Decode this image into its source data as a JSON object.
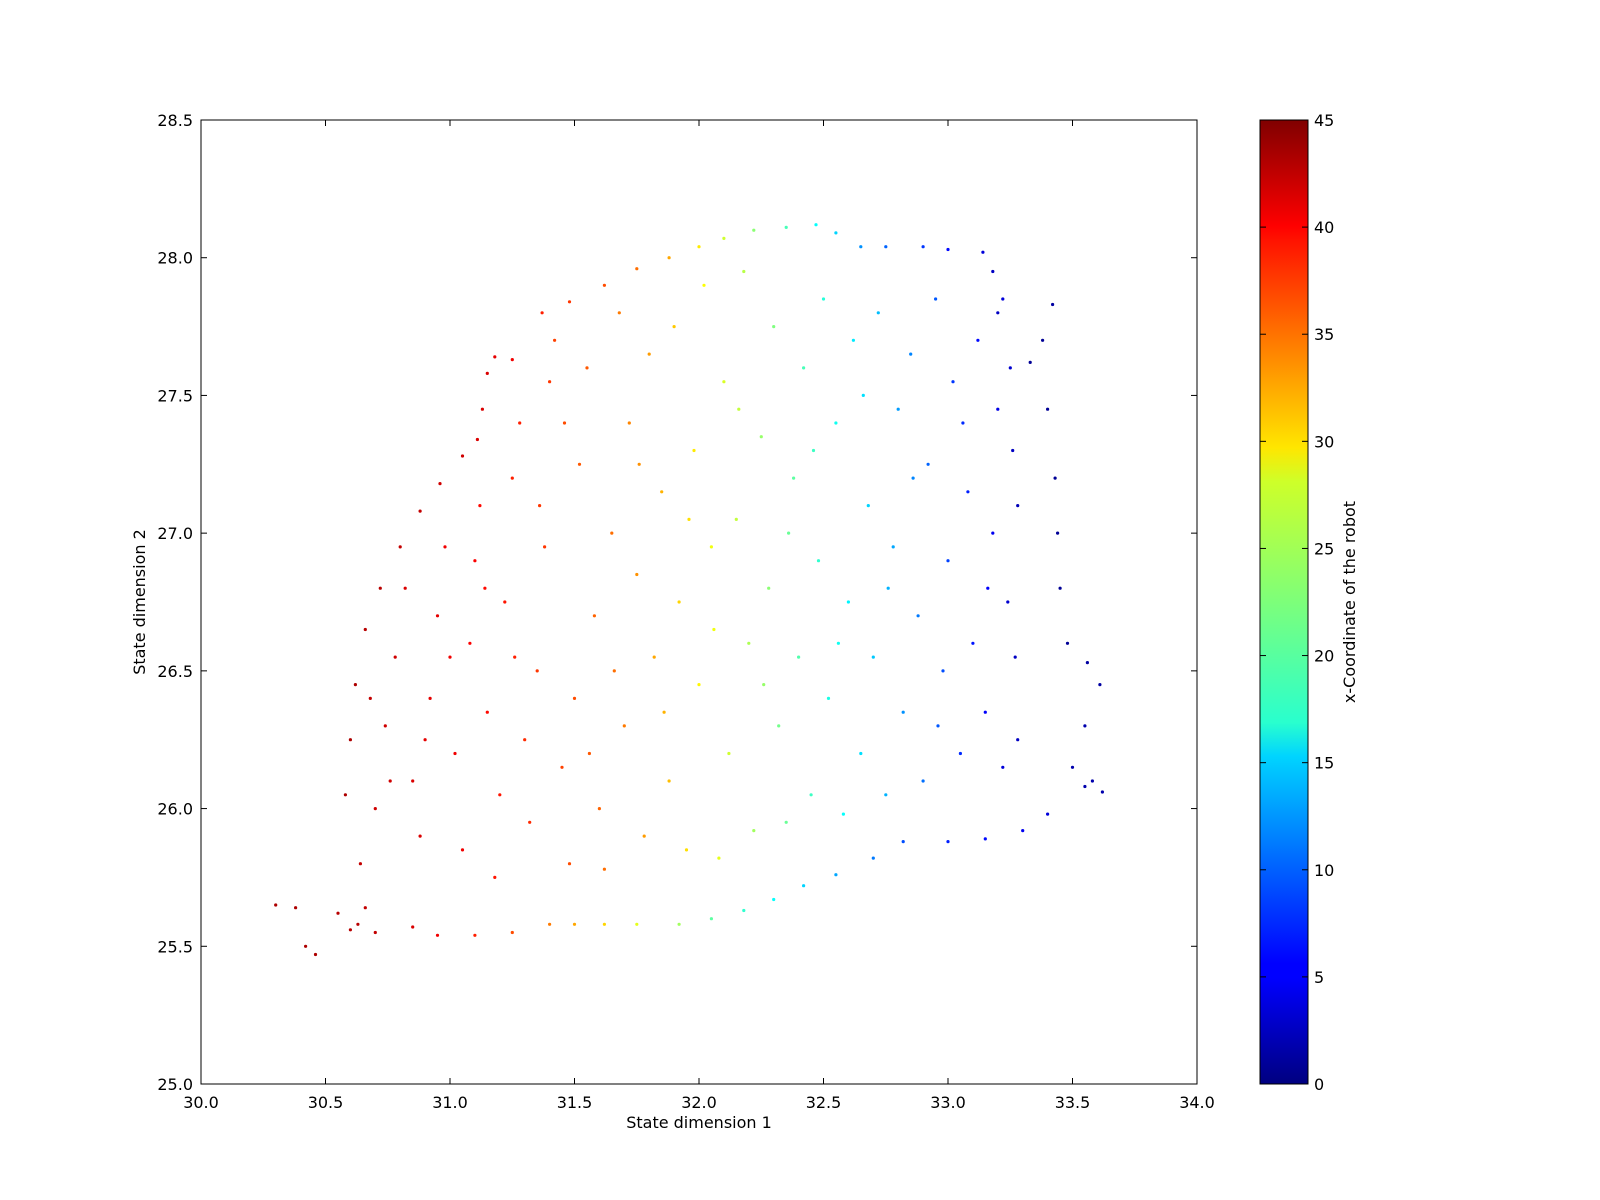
{
  "chart_data": {
    "type": "scatter",
    "title": "",
    "xlabel": "State dimension 1",
    "ylabel": "State dimension 2",
    "xlim": [
      30.0,
      34.0
    ],
    "ylim": [
      25.0,
      28.5
    ],
    "xticks": [
      "30.0",
      "30.5",
      "31.0",
      "31.5",
      "32.0",
      "32.5",
      "33.0",
      "33.5",
      "34.0"
    ],
    "yticks": [
      "25.0",
      "25.5",
      "26.0",
      "26.5",
      "27.0",
      "27.5",
      "28.0",
      "28.5"
    ],
    "grid": false,
    "colorbar": {
      "label": "x-Coordinate of the robot",
      "range": [
        0,
        45
      ],
      "ticks": [
        "0",
        "5",
        "10",
        "15",
        "20",
        "25",
        "30",
        "35",
        "40",
        "45"
      ],
      "colormap": "jet"
    },
    "marker_size": "tiny",
    "series": [
      {
        "points": [
          [
            30.58,
            26.05,
            43
          ],
          [
            30.6,
            26.25,
            43
          ],
          [
            30.62,
            26.45,
            43
          ],
          [
            30.66,
            26.65,
            42.5
          ],
          [
            30.72,
            26.8,
            42.5
          ],
          [
            30.8,
            26.95,
            42
          ],
          [
            30.88,
            27.08,
            42
          ],
          [
            30.96,
            27.18,
            41.5
          ],
          [
            31.05,
            27.28,
            41.5
          ],
          [
            31.11,
            27.34,
            41
          ],
          [
            31.13,
            27.45,
            41
          ],
          [
            31.15,
            27.58,
            41
          ],
          [
            31.18,
            27.64,
            40.5
          ],
          [
            31.25,
            27.63,
            40
          ],
          [
            31.37,
            27.8,
            38
          ],
          [
            31.48,
            27.84,
            37
          ],
          [
            31.62,
            27.9,
            36
          ],
          [
            31.75,
            27.96,
            34.5
          ],
          [
            31.88,
            28.0,
            32
          ],
          [
            32.0,
            28.04,
            29
          ],
          [
            32.1,
            28.07,
            26
          ],
          [
            32.22,
            28.1,
            23
          ],
          [
            32.35,
            28.11,
            20
          ],
          [
            32.47,
            28.12,
            17
          ],
          [
            32.55,
            28.09,
            15
          ],
          [
            32.65,
            28.04,
            12
          ],
          [
            32.75,
            28.04,
            10
          ],
          [
            32.9,
            28.04,
            8
          ],
          [
            33.0,
            28.03,
            6
          ],
          [
            33.14,
            28.02,
            4
          ],
          [
            33.18,
            27.95,
            3
          ],
          [
            33.2,
            27.8,
            3
          ],
          [
            33.42,
            27.83,
            1.5
          ],
          [
            33.38,
            27.7,
            1
          ],
          [
            33.33,
            27.62,
            1
          ],
          [
            33.4,
            27.45,
            1
          ],
          [
            33.43,
            27.2,
            1
          ],
          [
            33.44,
            27.0,
            1
          ],
          [
            33.45,
            26.8,
            1
          ],
          [
            33.48,
            26.6,
            1
          ],
          [
            33.56,
            26.53,
            1.5
          ],
          [
            33.61,
            26.45,
            1.5
          ],
          [
            33.55,
            26.3,
            2
          ],
          [
            33.5,
            26.15,
            2
          ],
          [
            33.55,
            26.08,
            2
          ],
          [
            33.62,
            26.06,
            2
          ],
          [
            33.58,
            26.1,
            2
          ],
          [
            33.4,
            25.98,
            4
          ],
          [
            33.3,
            25.92,
            5
          ],
          [
            33.15,
            25.89,
            6
          ],
          [
            33.0,
            25.88,
            7
          ],
          [
            32.82,
            25.88,
            9
          ],
          [
            32.7,
            25.82,
            11
          ],
          [
            32.55,
            25.76,
            13
          ],
          [
            32.42,
            25.72,
            15
          ],
          [
            32.3,
            25.67,
            17
          ],
          [
            32.18,
            25.63,
            19
          ],
          [
            32.05,
            25.6,
            21
          ],
          [
            31.92,
            25.58,
            24
          ],
          [
            31.75,
            25.58,
            27
          ],
          [
            31.62,
            25.58,
            30
          ],
          [
            31.5,
            25.58,
            32
          ],
          [
            31.4,
            25.58,
            34
          ],
          [
            31.25,
            25.55,
            36
          ],
          [
            31.1,
            25.54,
            38
          ],
          [
            30.95,
            25.54,
            40
          ],
          [
            30.85,
            25.57,
            41
          ],
          [
            30.3,
            25.65,
            43
          ],
          [
            30.38,
            25.64,
            43
          ],
          [
            30.42,
            25.5,
            43
          ],
          [
            30.46,
            25.47,
            43
          ],
          [
            30.55,
            25.62,
            42.5
          ],
          [
            30.6,
            25.56,
            42.5
          ],
          [
            30.63,
            25.58,
            42.5
          ],
          [
            30.66,
            25.64,
            42
          ],
          [
            30.7,
            25.55,
            42
          ],
          [
            30.64,
            25.8,
            42
          ],
          [
            30.7,
            26.0,
            41.5
          ],
          [
            30.74,
            26.3,
            41.5
          ],
          [
            30.78,
            26.55,
            41.5
          ],
          [
            30.82,
            26.8,
            41
          ],
          [
            30.85,
            26.1,
            41
          ],
          [
            30.88,
            25.9,
            41
          ],
          [
            30.92,
            26.4,
            40.5
          ],
          [
            30.95,
            26.7,
            40.5
          ],
          [
            30.98,
            26.95,
            40
          ],
          [
            31.02,
            26.2,
            40
          ],
          [
            31.05,
            25.85,
            40
          ],
          [
            31.08,
            26.6,
            39.5
          ],
          [
            31.1,
            26.9,
            39.5
          ],
          [
            31.12,
            27.1,
            39
          ],
          [
            31.15,
            26.35,
            39
          ],
          [
            31.18,
            25.75,
            38.5
          ],
          [
            31.2,
            26.05,
            38.5
          ],
          [
            31.22,
            26.75,
            38.5
          ],
          [
            31.25,
            27.2,
            38
          ],
          [
            31.28,
            27.4,
            38
          ],
          [
            31.3,
            26.25,
            37.5
          ],
          [
            31.32,
            25.95,
            37.5
          ],
          [
            31.35,
            26.5,
            37
          ],
          [
            31.38,
            26.95,
            37
          ],
          [
            31.4,
            27.55,
            37
          ],
          [
            31.42,
            27.7,
            36.5
          ],
          [
            31.45,
            26.15,
            36.5
          ],
          [
            31.48,
            25.8,
            36
          ],
          [
            31.5,
            26.4,
            36
          ],
          [
            31.52,
            27.25,
            35.5
          ],
          [
            31.55,
            27.6,
            35.5
          ],
          [
            31.58,
            26.7,
            35
          ],
          [
            31.6,
            26.0,
            35
          ],
          [
            31.62,
            25.78,
            34.5
          ],
          [
            31.65,
            27.0,
            34.5
          ],
          [
            31.68,
            27.8,
            34
          ],
          [
            31.7,
            26.3,
            34
          ],
          [
            31.72,
            27.4,
            33.5
          ],
          [
            31.75,
            26.85,
            33
          ],
          [
            31.78,
            25.9,
            32.5
          ],
          [
            31.8,
            27.65,
            32.5
          ],
          [
            31.82,
            26.55,
            32
          ],
          [
            31.85,
            27.15,
            31.5
          ],
          [
            31.88,
            26.1,
            31
          ],
          [
            31.9,
            27.75,
            30.5
          ],
          [
            31.92,
            26.75,
            30
          ],
          [
            31.95,
            25.85,
            29.5
          ],
          [
            31.98,
            27.3,
            29
          ],
          [
            32.0,
            26.45,
            28.5
          ],
          [
            32.02,
            27.9,
            28
          ],
          [
            32.05,
            26.95,
            27.5
          ],
          [
            32.08,
            25.82,
            27
          ],
          [
            32.1,
            27.55,
            26.5
          ],
          [
            32.12,
            26.2,
            26
          ],
          [
            32.15,
            27.05,
            25.5
          ],
          [
            32.18,
            27.95,
            25
          ],
          [
            32.2,
            26.6,
            24.5
          ],
          [
            32.22,
            25.92,
            24
          ],
          [
            32.25,
            27.35,
            23.5
          ],
          [
            32.28,
            26.8,
            23
          ],
          [
            32.3,
            27.75,
            22.5
          ],
          [
            32.32,
            26.3,
            22
          ],
          [
            32.35,
            25.95,
            21.5
          ],
          [
            32.38,
            27.2,
            21
          ],
          [
            32.4,
            26.55,
            20.5
          ],
          [
            32.42,
            27.6,
            20
          ],
          [
            32.45,
            26.05,
            19.5
          ],
          [
            32.48,
            26.9,
            19
          ],
          [
            32.5,
            27.85,
            18.5
          ],
          [
            32.52,
            26.4,
            18
          ],
          [
            32.55,
            27.4,
            17.5
          ],
          [
            32.58,
            25.98,
            17
          ],
          [
            32.6,
            26.75,
            16.5
          ],
          [
            32.62,
            27.7,
            16
          ],
          [
            32.65,
            26.2,
            15.5
          ],
          [
            32.68,
            27.1,
            15
          ],
          [
            32.7,
            26.55,
            14.5
          ],
          [
            32.72,
            27.8,
            14
          ],
          [
            32.75,
            26.05,
            13.5
          ],
          [
            32.78,
            26.95,
            13
          ],
          [
            32.8,
            27.45,
            12.5
          ],
          [
            32.82,
            26.35,
            12
          ],
          [
            32.85,
            27.65,
            11.5
          ],
          [
            32.88,
            26.7,
            11
          ],
          [
            32.9,
            26.1,
            10.5
          ],
          [
            32.92,
            27.25,
            10
          ],
          [
            32.95,
            27.85,
            9.5
          ],
          [
            32.98,
            26.5,
            9
          ],
          [
            33.0,
            26.9,
            8.5
          ],
          [
            33.02,
            27.55,
            8
          ],
          [
            33.05,
            26.2,
            7.5
          ],
          [
            33.08,
            27.15,
            7
          ],
          [
            33.1,
            26.6,
            6.5
          ],
          [
            33.12,
            27.7,
            6
          ],
          [
            33.15,
            26.35,
            5.5
          ],
          [
            33.18,
            27.0,
            5
          ],
          [
            33.2,
            27.45,
            4.5
          ],
          [
            33.22,
            26.15,
            4
          ],
          [
            33.24,
            26.75,
            3.5
          ],
          [
            33.26,
            27.3,
            3
          ],
          [
            33.27,
            26.55,
            3
          ],
          [
            33.28,
            27.1,
            2.5
          ],
          [
            33.28,
            26.25,
            3
          ],
          [
            33.25,
            27.6,
            3.5
          ],
          [
            33.22,
            27.85,
            4
          ],
          [
            30.68,
            26.4,
            42
          ],
          [
            30.76,
            26.1,
            41.5
          ],
          [
            30.9,
            26.25,
            40.5
          ],
          [
            31.0,
            26.55,
            40
          ],
          [
            31.14,
            26.8,
            39
          ],
          [
            31.26,
            26.55,
            38
          ],
          [
            31.36,
            27.1,
            37
          ],
          [
            31.46,
            27.4,
            36
          ],
          [
            31.56,
            26.2,
            35.5
          ],
          [
            31.66,
            26.5,
            34.5
          ],
          [
            31.76,
            27.25,
            33
          ],
          [
            31.86,
            26.35,
            31.5
          ],
          [
            31.96,
            27.05,
            29.5
          ],
          [
            32.06,
            26.65,
            27.5
          ],
          [
            32.16,
            27.45,
            25.5
          ],
          [
            32.26,
            26.45,
            23.5
          ],
          [
            32.36,
            27.0,
            21.5
          ],
          [
            32.46,
            27.3,
            19.5
          ],
          [
            32.56,
            26.6,
            17.5
          ],
          [
            32.66,
            27.5,
            15.5
          ],
          [
            32.76,
            26.8,
            13.5
          ],
          [
            32.86,
            27.2,
            11.5
          ],
          [
            32.96,
            26.3,
            9.5
          ],
          [
            33.06,
            27.4,
            7.5
          ],
          [
            33.16,
            26.8,
            5.5
          ]
        ]
      }
    ]
  }
}
